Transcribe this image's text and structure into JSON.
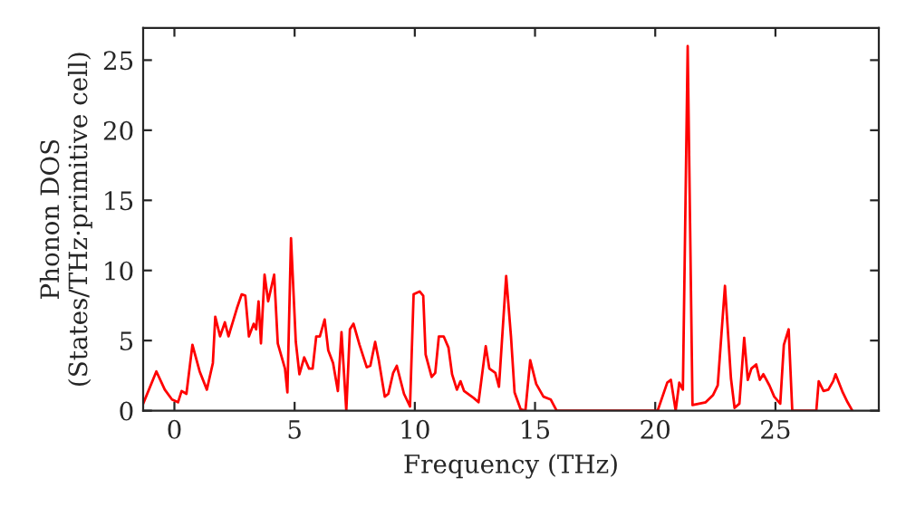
{
  "chart_data": {
    "type": "line",
    "xlabel": "Frequency (THz)",
    "ylabel": "Phonon DOS\n(States/THz·primitive cell)",
    "xlim": [
      -1.3,
      29.3
    ],
    "ylim": [
      0,
      27.3
    ],
    "xticks": [
      0,
      5,
      10,
      15,
      20,
      25
    ],
    "yticks": [
      0,
      5,
      10,
      15,
      20,
      25
    ],
    "marker": "none",
    "line_style": "solid",
    "x": [
      -1.3,
      -0.75,
      -0.4,
      -0.1,
      0.15,
      0.3,
      0.5,
      0.75,
      1.05,
      1.35,
      1.6,
      1.7,
      1.9,
      2.1,
      2.25,
      2.6,
      2.8,
      2.95,
      3.1,
      3.3,
      3.4,
      3.5,
      3.6,
      3.75,
      3.9,
      4.15,
      4.3,
      4.6,
      4.7,
      4.85,
      5.05,
      5.2,
      5.4,
      5.6,
      5.75,
      5.9,
      6.05,
      6.25,
      6.4,
      6.6,
      6.8,
      6.95,
      7.15,
      7.3,
      7.45,
      7.7,
      8.0,
      8.15,
      8.35,
      8.5,
      8.75,
      8.9,
      9.1,
      9.25,
      9.55,
      9.8,
      9.95,
      10.2,
      10.35,
      10.45,
      10.7,
      10.85,
      11.0,
      11.2,
      11.4,
      11.55,
      11.75,
      11.9,
      12.05,
      12.45,
      12.65,
      12.95,
      13.1,
      13.35,
      13.5,
      13.8,
      14.0,
      14.15,
      14.4,
      14.6,
      14.8,
      15.05,
      15.35,
      15.65,
      15.9,
      20.1,
      20.5,
      20.65,
      20.85,
      21.0,
      21.15,
      21.35,
      21.55,
      22.1,
      22.4,
      22.6,
      22.9,
      23.15,
      23.3,
      23.5,
      23.7,
      23.85,
      24.0,
      24.2,
      24.35,
      24.5,
      24.75,
      24.95,
      25.2,
      25.35,
      25.55,
      25.7,
      26.7,
      26.8,
      27.0,
      27.2,
      27.4,
      27.5,
      27.8,
      28.0,
      28.2
    ],
    "series": [
      {
        "color": "#ff0000",
        "values": [
          0.5,
          2.8,
          1.5,
          0.8,
          0.6,
          1.4,
          1.2,
          4.7,
          2.8,
          1.5,
          3.4,
          6.7,
          5.3,
          6.3,
          5.3,
          7.3,
          8.3,
          8.2,
          5.3,
          6.2,
          5.8,
          7.8,
          4.8,
          9.7,
          7.8,
          9.7,
          4.8,
          3.0,
          1.3,
          12.3,
          4.9,
          2.6,
          3.8,
          3.0,
          3.0,
          5.3,
          5.3,
          6.5,
          4.3,
          3.4,
          1.4,
          5.6,
          0,
          5.8,
          6.2,
          4.7,
          3.1,
          3.2,
          4.9,
          3.6,
          1.0,
          1.2,
          2.7,
          3.2,
          1.2,
          0.3,
          8.3,
          8.5,
          8.2,
          4.0,
          2.4,
          2.7,
          5.3,
          5.3,
          4.5,
          2.6,
          1.5,
          2.1,
          1.4,
          0.9,
          0.6,
          4.6,
          3.0,
          2.7,
          1.7,
          9.6,
          5.3,
          1.3,
          0.1,
          0,
          3.6,
          1.9,
          1.0,
          0.8,
          0,
          0,
          2.0,
          2.2,
          0,
          2.0,
          1.5,
          26.0,
          0.4,
          0.6,
          1.1,
          1.8,
          8.9,
          2.3,
          0.2,
          0.5,
          5.2,
          2.2,
          3.0,
          3.3,
          2.2,
          2.6,
          1.8,
          1.0,
          0.5,
          4.7,
          5.8,
          0,
          0,
          2.1,
          1.4,
          1.5,
          2.1,
          2.6,
          1.3,
          0.6,
          0
        ]
      }
    ]
  }
}
